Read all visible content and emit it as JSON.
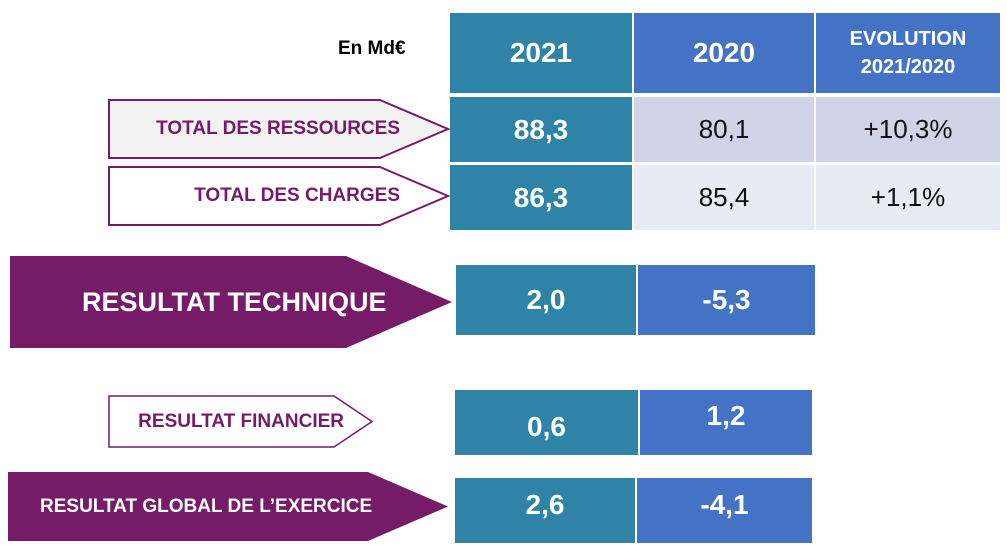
{
  "unit_label": "En Md€",
  "headers": [
    "2021",
    "2020",
    "EVOLUTION 2021/2020"
  ],
  "colors": {
    "teal": "#2e83a6",
    "blue": "#4472c4",
    "purple": "#761b68",
    "row_light": "#cfd4e8",
    "row_lighter": "#e8eaf4"
  },
  "rows": [
    {
      "label": "TOTAL DES RESSOURCES",
      "v2021": "88,3",
      "v2020": "80,1",
      "evolution": "+10,3%"
    },
    {
      "label": "TOTAL DES CHARGES",
      "v2021": "86,3",
      "v2020": "85,4",
      "evolution": "+1,1%"
    },
    {
      "label": "RESULTAT TECHNIQUE",
      "v2021": "2,0",
      "v2020": "-5,3"
    },
    {
      "label": "RESULTAT FINANCIER",
      "v2021": "0,6",
      "v2020": "1,2"
    },
    {
      "label": "RESULTAT GLOBAL DE L’EXERCICE",
      "v2021": "2,6",
      "v2020": "-4,1"
    }
  ]
}
